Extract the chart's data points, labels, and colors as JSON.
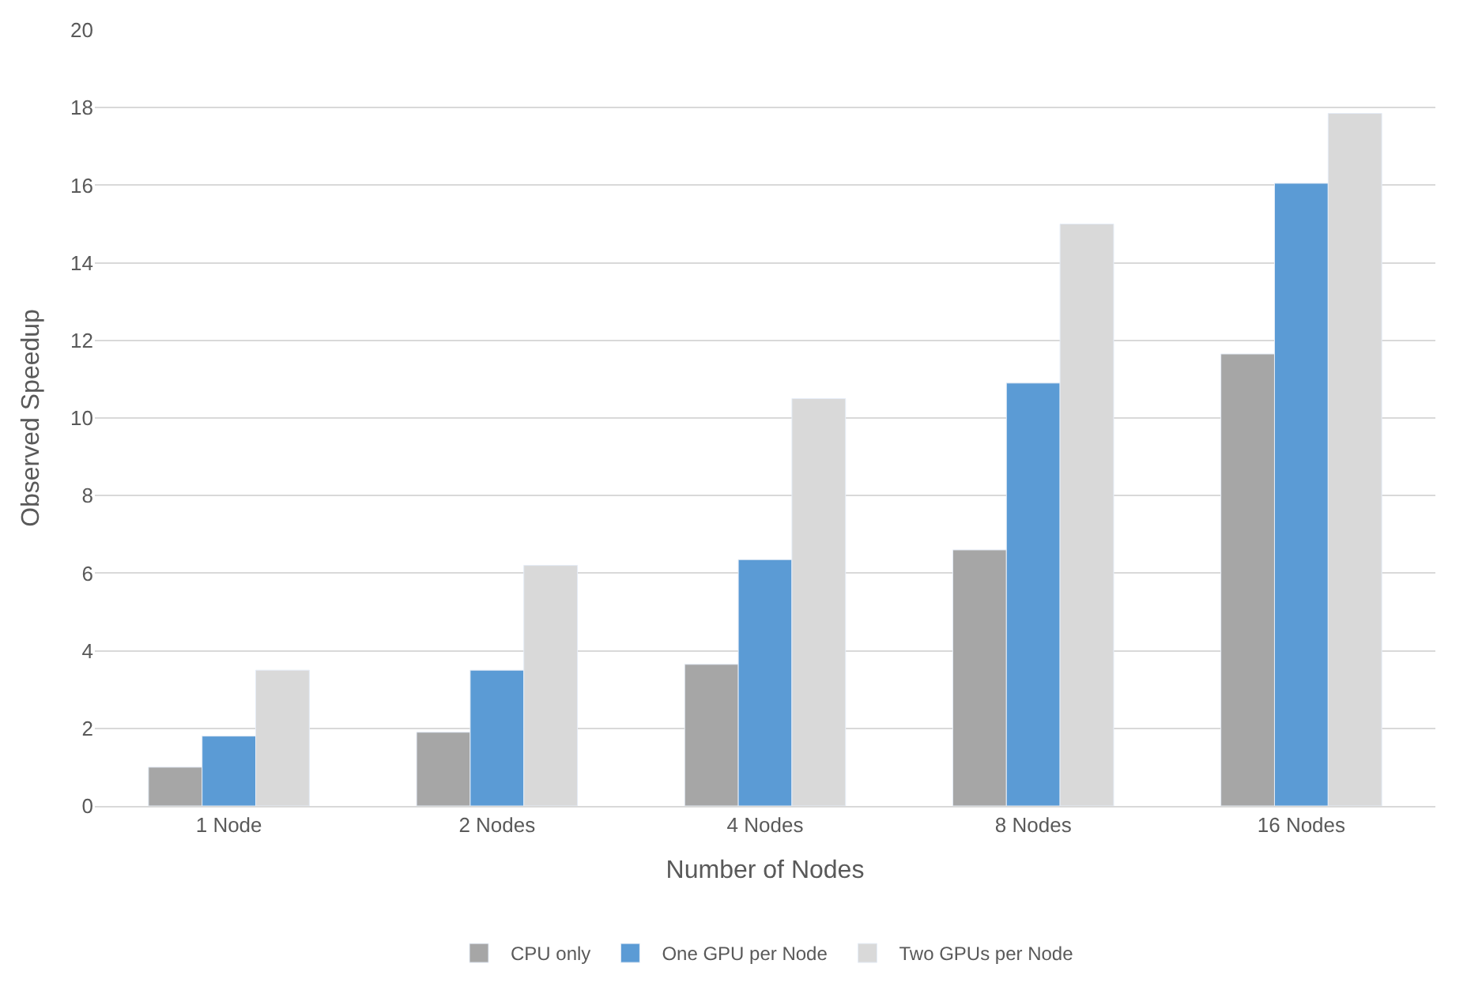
{
  "chart_data": {
    "type": "bar",
    "xlabel": "Number of Nodes",
    "ylabel": "Observed Speedup",
    "categories": [
      "1 Node",
      "2 Nodes",
      "4 Nodes",
      "8 Nodes",
      "16 Nodes"
    ],
    "series": [
      {
        "name": "CPU only",
        "color": "#a6a6a6",
        "values": [
          1.0,
          1.9,
          3.65,
          6.6,
          11.65
        ]
      },
      {
        "name": "One GPU per Node",
        "color": "#5b9bd5",
        "values": [
          1.8,
          3.5,
          6.35,
          10.9,
          16.05
        ]
      },
      {
        "name": "Two GPUs per Node",
        "color": "#d9d9d9",
        "values": [
          3.5,
          6.2,
          10.5,
          15.0,
          17.85
        ]
      }
    ],
    "ylim": [
      0,
      20
    ],
    "yticks": [
      0,
      2,
      4,
      6,
      8,
      10,
      12,
      14,
      16,
      18,
      20
    ],
    "grid": "y",
    "legend": "bottom"
  }
}
